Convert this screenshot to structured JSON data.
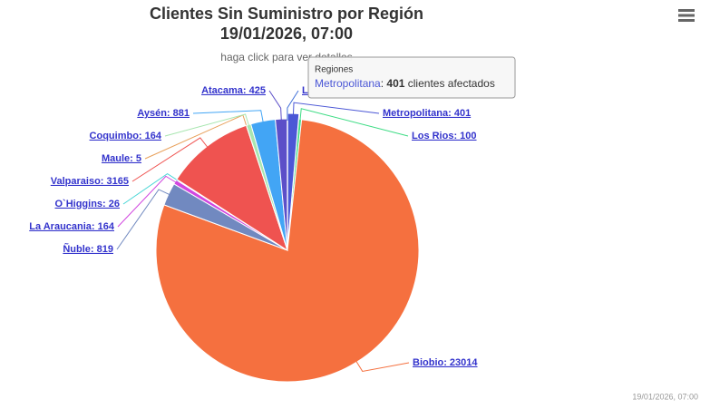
{
  "chart_data": {
    "type": "pie",
    "title": [
      "Clientes Sin Suministro por Región",
      "19/01/2026, 07:00"
    ],
    "subtitle": "haga click para ver detalles",
    "categories": [
      "Metropolitana",
      "Los Rios",
      "Biobio",
      "Ñuble",
      "La Araucania",
      "O`Higgins",
      "Valparaiso",
      "Maule",
      "Coquimbo",
      "Aysén",
      "Atacama",
      "L"
    ],
    "values": [
      401,
      100,
      23014,
      819,
      164,
      26,
      3165,
      5,
      164,
      881,
      425,
      5
    ],
    "value_labels": [
      "Metropolitana: 401",
      "Los Rios: 100",
      "Biobio: 23014",
      "Ñuble: 819",
      "La Araucania: 164",
      "O`Higgins: 26",
      "Valparaiso: 3165",
      "Maule: 5",
      "Coquimbo: 164",
      "Aysén: 881",
      "Atacama: 425",
      "L"
    ],
    "colors": [
      "#4b57d6",
      "#3ddc84",
      "#f5703f",
      "#7189c0",
      "#d147e0",
      "#49d6d6",
      "#ef5350",
      "#e8a05a",
      "#a8e6b0",
      "#42a5f5",
      "#5c4fc8",
      "#3f6fd8"
    ],
    "tooltip": {
      "header": "Regiones",
      "point": 0,
      "suffix": "clientes afectados"
    },
    "credits": "19/01/2026, 07:00"
  }
}
